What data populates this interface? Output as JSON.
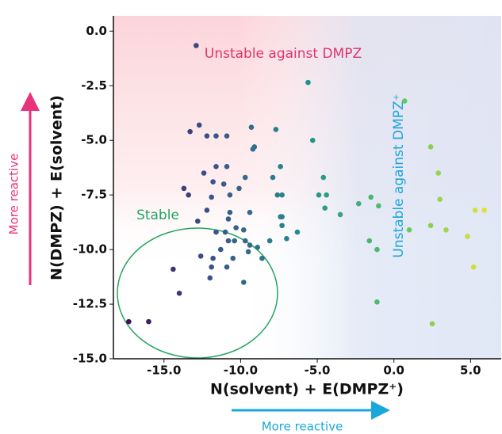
{
  "chart_data": {
    "type": "scatter",
    "x_label": "N(solvent) + E(DMPZ⁺)",
    "y_label": "N(DMPZ) + E(solvent)",
    "annotations": [
      "Unstable against DMPZ",
      "Unstable against DMPZ⁺",
      "Stable",
      "More reactive",
      "More reactive"
    ],
    "colormap": "viridis",
    "xlim": [
      -18.3,
      7.0
    ],
    "ylim": [
      -15.0,
      0.7
    ],
    "xticks": [
      {
        "value": -15,
        "label": "-15.0"
      },
      {
        "value": -10,
        "label": "-10.0"
      },
      {
        "value": -5,
        "label": "-5.0"
      },
      {
        "value": 0,
        "label": "0.0"
      },
      {
        "value": 5,
        "label": "5.0"
      }
    ],
    "yticks": [
      {
        "value": 0,
        "label": "0.0"
      },
      {
        "value": -2.5,
        "label": "-2.5"
      },
      {
        "value": -5,
        "label": "-5.0"
      },
      {
        "value": -7.5,
        "label": "-7.5"
      },
      {
        "value": -10,
        "label": "-10.0"
      },
      {
        "value": -12.5,
        "label": "-12.5"
      },
      {
        "value": -15,
        "label": "-15.0"
      }
    ],
    "x": [
      -12.9,
      -5.6,
      0.7,
      -12.7,
      -13.3,
      -12.2,
      -11.6,
      -10.9,
      -9.3,
      -7.7,
      -9.1,
      -9.2,
      -5.3,
      2.4,
      -12.4,
      -11.6,
      -10.9,
      -9.7,
      -7.9,
      -7.4,
      -4.6,
      2.9,
      -13.7,
      -13.4,
      -11.8,
      -11.1,
      -11.9,
      -10.7,
      -10.1,
      -7.6,
      -7.3,
      -4.9,
      -4.4,
      -2.3,
      -1.5,
      -1.0,
      -4.5,
      -3.5,
      3.0,
      5.3,
      5.9,
      -12.2,
      -10.7,
      -9.4,
      -7.4,
      -7.3,
      -12.8,
      -10.8,
      -7.3,
      1.0,
      2.4,
      3.4,
      4.8,
      -6.3,
      -7.0,
      -10.3,
      -9.8,
      -11.0,
      -11.6,
      -1.6,
      -1.1,
      -10.8,
      -10.4,
      -9.7,
      -9.4,
      -8.9,
      -8.1,
      -9.5,
      -11.3,
      -10.5,
      -12.6,
      -11.8,
      -10.9,
      -8.6,
      -14.4,
      -11.9,
      -9.8,
      -12.0,
      -14.0,
      -1.1,
      2.5,
      -17.3,
      -16.0,
      5.2
    ],
    "values": [
      -0.66,
      -2.35,
      -3.2,
      -4.3,
      -4.6,
      -4.8,
      -4.8,
      -4.8,
      -4.4,
      -4.5,
      -5.3,
      -5.4,
      -5.0,
      -5.3,
      -6.5,
      -6.2,
      -6.2,
      -6.7,
      -6.7,
      -6.2,
      -6.7,
      -6.5,
      -7.2,
      -7.5,
      -6.9,
      -7.0,
      -7.6,
      -7.5,
      -7.2,
      -7.5,
      -7.5,
      -7.5,
      -7.5,
      -7.9,
      -7.6,
      -8.0,
      -8.1,
      -8.4,
      -7.7,
      -8.2,
      -8.2,
      -8.2,
      -8.3,
      -8.3,
      -8.5,
      -8.5,
      -8.7,
      -8.6,
      -8.9,
      -9.1,
      -8.9,
      -9.1,
      -9.4,
      -9.2,
      -9.5,
      -9.0,
      -9.1,
      -9.2,
      -9.2,
      -9.6,
      -10.0,
      -9.6,
      -9.6,
      -9.6,
      -9.8,
      -9.9,
      -9.6,
      -10.1,
      -10.0,
      -10.4,
      -10.3,
      -10.4,
      -10.8,
      -10.4,
      -10.9,
      -10.8,
      -11.5,
      -11.3,
      -12.0,
      -12.4,
      -13.4,
      -13.3,
      -13.3,
      -10.8
    ]
  }
}
